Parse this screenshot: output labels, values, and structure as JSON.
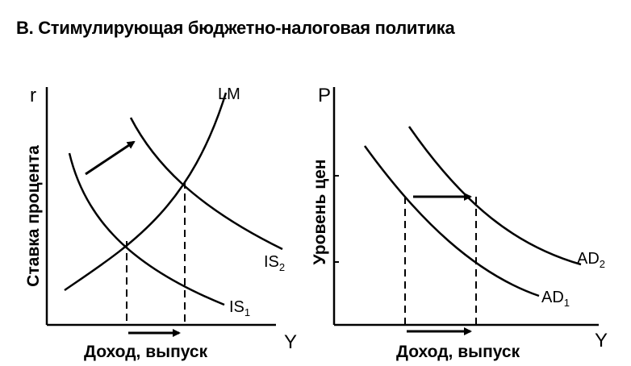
{
  "heading": "В. Стимулирующая бюджетно-налоговая политика",
  "left_panel": {
    "y_axis_symbol": "r",
    "y_axis_title": "Ставка процента",
    "x_axis_symbol": "Y",
    "x_axis_title": "Доход, выпуск",
    "curves": {
      "lm": "LM",
      "is1_base": "IS",
      "is1_sub": "1",
      "is2_base": "IS",
      "is2_sub": "2"
    }
  },
  "right_panel": {
    "y_axis_symbol": "P",
    "y_axis_title": "Уровень цен",
    "x_axis_symbol": "Y",
    "x_axis_title": "Доход, выпуск",
    "curves": {
      "ad1_base": "AD",
      "ad1_sub": "1",
      "ad2_base": "AD",
      "ad2_sub": "2"
    }
  },
  "colors": {
    "ink": "#000000",
    "background": "#ffffff"
  }
}
